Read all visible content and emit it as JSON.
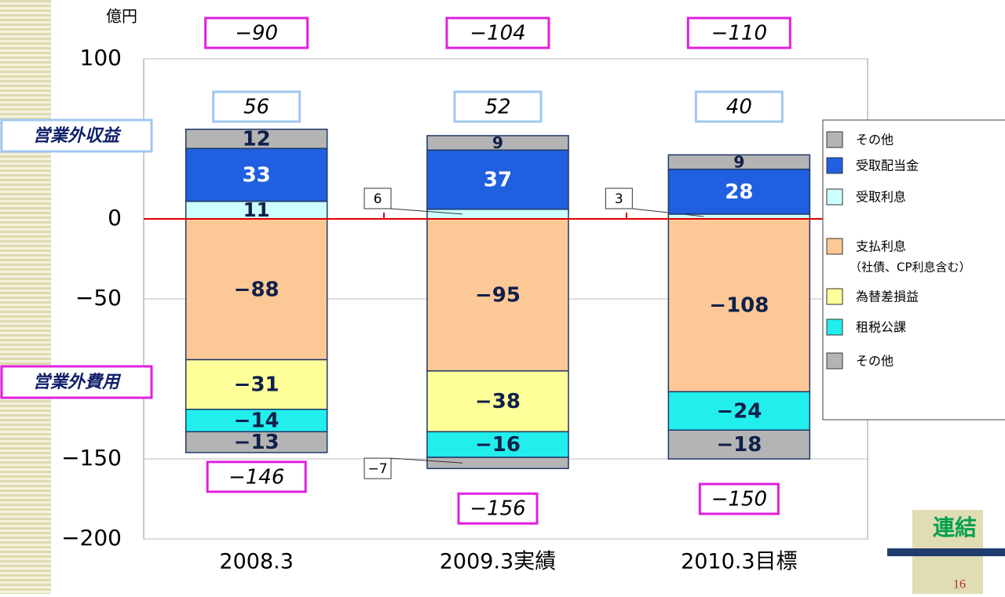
{
  "unit_label": "億円",
  "chart_data": {
    "type": "bar",
    "stacked": true,
    "categories": [
      "2008.3",
      "2009.3実績",
      "2010.3目標"
    ],
    "series": [
      {
        "name": "その他",
        "color": "#b4b4b4",
        "values": [
          12,
          9,
          9
        ]
      },
      {
        "name": "受取配当金",
        "color": "#2060e0",
        "values": [
          33,
          37,
          28
        ]
      },
      {
        "name": "受取利息",
        "color": "#ccffff",
        "values": [
          11,
          6,
          3
        ]
      },
      {
        "name": "支払利息",
        "note": "（社債、CP利息含む）",
        "color": "#fcc896",
        "values": [
          -88,
          -95,
          -108
        ],
        "value_labels": [
          "−88",
          "−95",
          "−108"
        ]
      },
      {
        "name": "為替差損益",
        "color": "#ffff99",
        "values": [
          -31,
          -38,
          null
        ],
        "value_labels": [
          "−31",
          "−38",
          null
        ]
      },
      {
        "name": "租税公課",
        "color": "#22eeee",
        "values": [
          -14,
          -16,
          -24
        ],
        "value_labels": [
          "−14",
          "−16",
          "−24"
        ]
      },
      {
        "name": "その他",
        "color": "#b4b4b4",
        "values": [
          -13,
          -7,
          -18
        ],
        "value_labels": [
          "−13",
          "−7",
          "−18"
        ]
      }
    ],
    "ylim": [
      -200,
      100
    ],
    "yticks": [
      100,
      0,
      {
        "value": -50,
        "label": "−50"
      },
      {
        "value": -150,
        "label": "−150"
      },
      {
        "value": -200,
        "label": "−200"
      }
    ],
    "grid": true,
    "zero_line_color": "#e00000",
    "totals": {
      "positive": {
        "values": [
          56,
          52,
          40
        ]
      },
      "negative": {
        "values": [
          -146,
          -156,
          -150
        ],
        "value_labels": [
          "−146",
          "−156",
          "−150"
        ]
      },
      "net": {
        "values": [
          -90,
          -104,
          -110
        ],
        "value_labels": [
          "−90",
          "−104",
          "−110"
        ]
      }
    },
    "legend": {
      "position": "right"
    },
    "annotations": [
      "営業外収益",
      "営業外費用"
    ]
  },
  "badge": "連結",
  "page_number": "16"
}
